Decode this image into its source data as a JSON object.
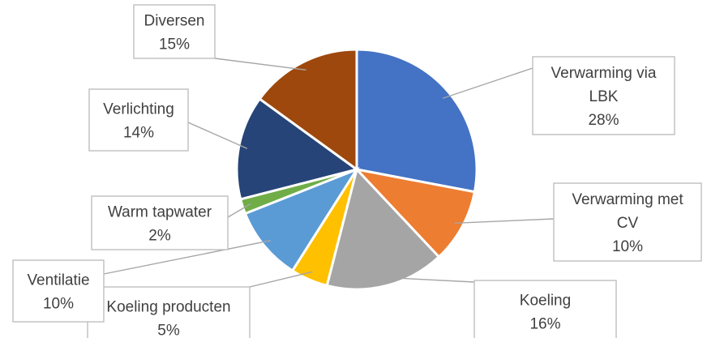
{
  "chart_data": {
    "type": "pie",
    "title": "",
    "start_angle_deg": 0,
    "direction": "clockwise",
    "slices": [
      {
        "label_lines": [
          "Verwarming via",
          "LBK"
        ],
        "label": "Verwarming via LBK",
        "value": 28,
        "display": "28%",
        "color": "#4472c4"
      },
      {
        "label_lines": [
          "Verwarming met",
          "CV"
        ],
        "label": "Verwarming met CV",
        "value": 10,
        "display": "10%",
        "color": "#ed7d31"
      },
      {
        "label_lines": [
          "Koeling"
        ],
        "label": "Koeling",
        "value": 16,
        "display": "16%",
        "color": "#a5a5a5"
      },
      {
        "label_lines": [
          "Koeling producten"
        ],
        "label": "Koeling producten",
        "value": 5,
        "display": "5%",
        "color": "#ffc000"
      },
      {
        "label_lines": [
          "Ventilatie"
        ],
        "label": "Ventilatie",
        "value": 10,
        "display": "10%",
        "color": "#5b9bd5"
      },
      {
        "label_lines": [
          "Warm tapwater"
        ],
        "label": "Warm tapwater",
        "value": 2,
        "display": "2%",
        "color": "#70ad47"
      },
      {
        "label_lines": [
          "Verlichting"
        ],
        "label": "Verlichting",
        "value": 14,
        "display": "14%",
        "color": "#264478"
      },
      {
        "label_lines": [
          "Diversen"
        ],
        "label": "Diversen",
        "value": 15,
        "display": "15%",
        "color": "#9e480e"
      }
    ]
  }
}
